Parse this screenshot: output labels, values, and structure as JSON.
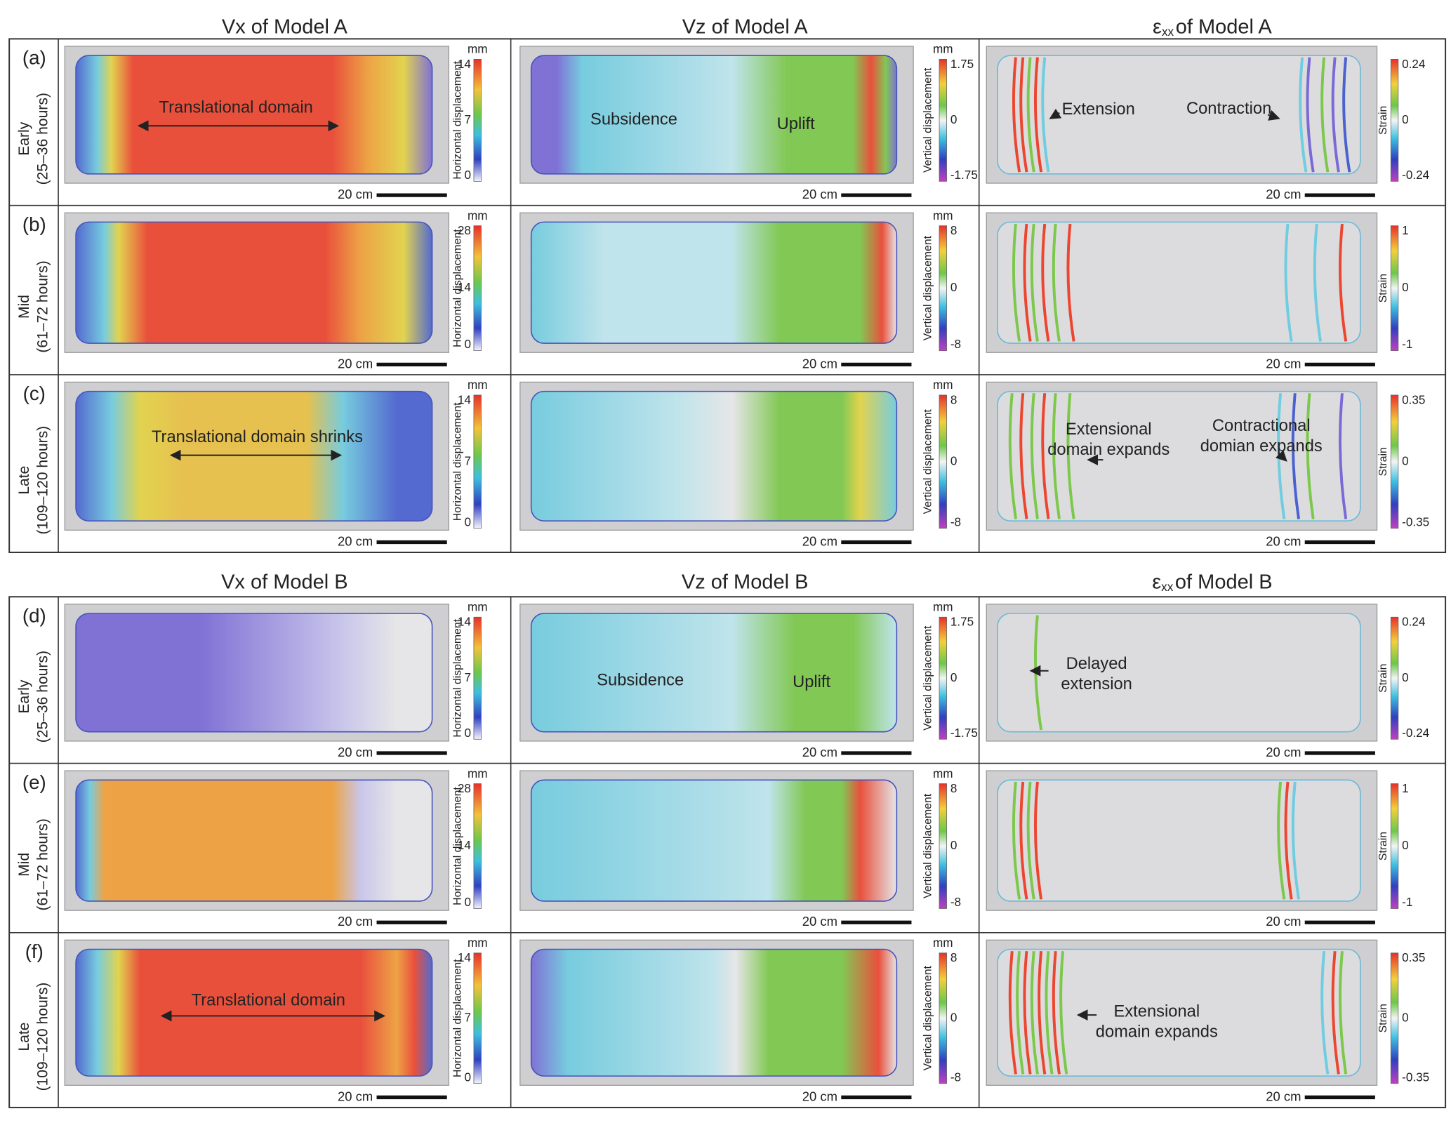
{
  "models": [
    {
      "headers": [
        {
          "text": "Vx of Model A"
        },
        {
          "text": "Vz of Model A"
        },
        {
          "symbol": "ε",
          "subscript": "xx",
          "text": "of Model A"
        }
      ],
      "rows": [
        {
          "letter": "(a)",
          "stage": "Early",
          "hours": "(25–36 hours)",
          "panels": [
            {
              "unit": "mm",
              "ticks": [
                "14",
                "7",
                "0"
              ],
              "axis_label": "Horizontal displacement",
              "scale_bar": "20 cm",
              "annotations": [
                {
                  "lines": [
                    "Translational domain"
                  ]
                }
              ]
            },
            {
              "unit": "mm",
              "ticks": [
                "1.75",
                "0",
                "-1.75"
              ],
              "axis_label": "Vertical displacement",
              "scale_bar": "20 cm",
              "annotations": [
                {
                  "lines": [
                    "Subsidence"
                  ]
                },
                {
                  "lines": [
                    "Uplift"
                  ]
                }
              ]
            },
            {
              "ticks": [
                "0.24",
                "0",
                "-0.24"
              ],
              "axis_label": "Strain",
              "scale_bar": "20 cm",
              "annotations": [
                {
                  "lines": [
                    "Extension"
                  ]
                },
                {
                  "lines": [
                    "Contraction"
                  ]
                }
              ]
            }
          ]
        },
        {
          "letter": "(b)",
          "stage": "Mid",
          "hours": "(61–72 hours)",
          "panels": [
            {
              "unit": "mm",
              "ticks": [
                "28",
                "14",
                "0"
              ],
              "axis_label": "Horizontal displacement",
              "scale_bar": "20 cm",
              "annotations": []
            },
            {
              "unit": "mm",
              "ticks": [
                "8",
                "0",
                "-8"
              ],
              "axis_label": "Vertical displacement",
              "scale_bar": "20 cm",
              "annotations": []
            },
            {
              "ticks": [
                "1",
                "0",
                "-1"
              ],
              "axis_label": "Strain",
              "scale_bar": "20 cm",
              "annotations": []
            }
          ]
        },
        {
          "letter": "(c)",
          "stage": "Late",
          "hours": "(109–120 hours)",
          "panels": [
            {
              "unit": "mm",
              "ticks": [
                "14",
                "7",
                "0"
              ],
              "axis_label": "Horizontal displacement",
              "scale_bar": "20 cm",
              "annotations": [
                {
                  "lines": [
                    "Translational domain shrinks"
                  ]
                }
              ]
            },
            {
              "unit": "mm",
              "ticks": [
                "8",
                "0",
                "-8"
              ],
              "axis_label": "Vertical displacement",
              "scale_bar": "20 cm",
              "annotations": []
            },
            {
              "ticks": [
                "0.35",
                "0",
                "-0.35"
              ],
              "axis_label": "Strain",
              "scale_bar": "20 cm",
              "annotations": [
                {
                  "lines": [
                    "Extensional",
                    "domain expands"
                  ]
                },
                {
                  "lines": [
                    "Contractional",
                    "domian expands"
                  ]
                }
              ]
            }
          ]
        }
      ]
    },
    {
      "headers": [
        {
          "text": "Vx of Model B"
        },
        {
          "text": "Vz of Model B"
        },
        {
          "symbol": "ε",
          "subscript": "xx",
          "text": "of Model B"
        }
      ],
      "rows": [
        {
          "letter": "(d)",
          "stage": "Early",
          "hours": "(25–36 hours)",
          "panels": [
            {
              "unit": "mm",
              "ticks": [
                "14",
                "7",
                "0"
              ],
              "axis_label": "Horizontal displacement",
              "scale_bar": "20 cm",
              "annotations": []
            },
            {
              "unit": "mm",
              "ticks": [
                "1.75",
                "0",
                "-1.75"
              ],
              "axis_label": "Vertical displacement",
              "scale_bar": "20 cm",
              "annotations": [
                {
                  "lines": [
                    "Subsidence"
                  ]
                },
                {
                  "lines": [
                    "Uplift"
                  ]
                }
              ]
            },
            {
              "ticks": [
                "0.24",
                "0",
                "-0.24"
              ],
              "axis_label": "Strain",
              "scale_bar": "20 cm",
              "annotations": [
                {
                  "lines": [
                    "Delayed",
                    "extension"
                  ]
                }
              ]
            }
          ]
        },
        {
          "letter": "(e)",
          "stage": "Mid",
          "hours": "(61–72 hours)",
          "panels": [
            {
              "unit": "mm",
              "ticks": [
                "28",
                "14",
                "0"
              ],
              "axis_label": "Horizontal displacement",
              "scale_bar": "20 cm",
              "annotations": []
            },
            {
              "unit": "mm",
              "ticks": [
                "8",
                "0",
                "-8"
              ],
              "axis_label": "Vertical displacement",
              "scale_bar": "20 cm",
              "annotations": []
            },
            {
              "ticks": [
                "1",
                "0",
                "-1"
              ],
              "axis_label": "Strain",
              "scale_bar": "20 cm",
              "annotations": []
            }
          ]
        },
        {
          "letter": "(f)",
          "stage": "Late",
          "hours": "(109–120 hours)",
          "panels": [
            {
              "unit": "mm",
              "ticks": [
                "14",
                "7",
                "0"
              ],
              "axis_label": "Horizontal displacement",
              "scale_bar": "20 cm",
              "annotations": [
                {
                  "lines": [
                    "Translational domain"
                  ]
                }
              ]
            },
            {
              "unit": "mm",
              "ticks": [
                "8",
                "0",
                "-8"
              ],
              "axis_label": "Vertical displacement",
              "scale_bar": "20 cm",
              "annotations": []
            },
            {
              "ticks": [
                "0.35",
                "0",
                "-0.35"
              ],
              "axis_label": "Strain",
              "scale_bar": "20 cm",
              "annotations": [
                {
                  "lines": [
                    "Extensional",
                    "domain expands"
                  ]
                }
              ]
            }
          ]
        }
      ]
    }
  ]
}
